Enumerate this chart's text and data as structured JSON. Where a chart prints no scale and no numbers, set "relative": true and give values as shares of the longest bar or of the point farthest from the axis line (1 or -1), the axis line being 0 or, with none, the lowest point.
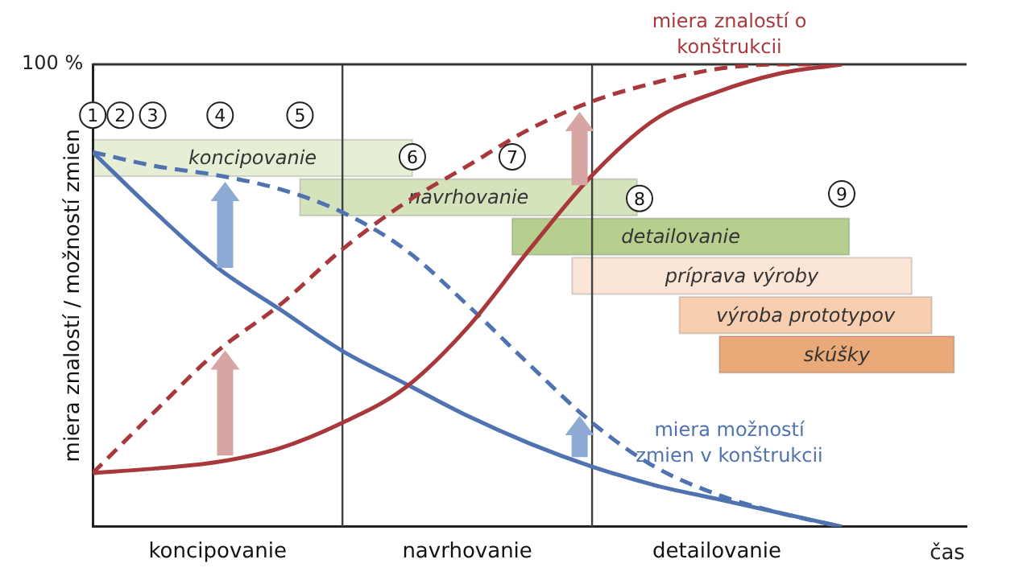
{
  "chart_data": {
    "type": "line",
    "ylabel": "miera znalostí / možností zmien",
    "xlabel": "čas",
    "relative": true,
    "categories": [
      null,
      null,
      "koncipovanie",
      null,
      null,
      null,
      "navrhovanie",
      null,
      null,
      null,
      "detailovanie",
      null,
      null,
      null,
      null
    ],
    "series": [
      {
        "name": "miera znalostí o konštrukcii",
        "color": "#a8383b",
        "line_style": "solid",
        "values": [
          0.116,
          0.126,
          0.14,
          0.17,
          0.225,
          0.3,
          0.43,
          0.6,
          0.76,
          0.88,
          0.94,
          0.98,
          1.0,
          null,
          null
        ]
      },
      {
        "color": "#a8383b",
        "line_style": "dashed",
        "values": [
          0.116,
          0.25,
          0.38,
          0.48,
          0.6,
          0.7,
          0.78,
          0.86,
          0.92,
          0.96,
          0.99,
          1.0,
          1.0,
          null,
          null
        ]
      },
      {
        "name": "miera možností zmien v konštrukcii",
        "color": "#4f72b0",
        "line_style": "solid",
        "values": [
          0.81,
          0.68,
          0.56,
          0.47,
          0.38,
          0.31,
          0.24,
          0.18,
          0.13,
          0.09,
          0.06,
          0.03,
          0,
          null,
          null
        ]
      },
      {
        "color": "#4f72b0",
        "line_style": "dashed",
        "values": [
          0.81,
          0.78,
          0.76,
          0.73,
          0.68,
          0.6,
          0.48,
          0.35,
          0.225,
          0.13,
          0.07,
          0.03,
          0,
          null,
          null
        ]
      }
    ],
    "ref_lines": [
      {
        "axis": "y",
        "value": 1,
        "label": "100 %",
        "color": "#333333"
      }
    ],
    "annotations": [
      "1",
      "2",
      "3",
      "4",
      "5",
      "6",
      "7",
      "8",
      "9",
      "koncipovanie",
      "navrhovanie",
      "detailovanie",
      "príprava výroby",
      "výroba prototypov",
      "skúšky"
    ]
  }
}
